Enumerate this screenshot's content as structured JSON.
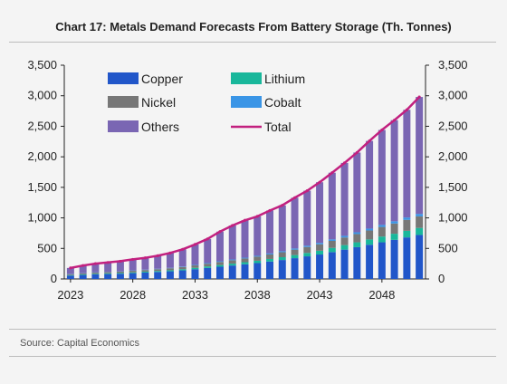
{
  "title": "Chart 17: Metals Demand Forecasts From Battery Storage (Th. Tonnes)",
  "source": "Source: Capital Economics",
  "colors": {
    "copper": "#2156c9",
    "lithium": "#19b79b",
    "nickel": "#777777",
    "cobalt": "#3a95e6",
    "others": "#7a66b3",
    "total": "#c2207f"
  },
  "chart_data": {
    "type": "bar",
    "stacked": true,
    "title": "Chart 17: Metals Demand Forecasts From Battery Storage (Th. Tonnes)",
    "xlabel": "",
    "ylabel": "",
    "ylim": [
      0,
      3500
    ],
    "yticks": [
      "0",
      "500",
      "1,000",
      "1,500",
      "2,000",
      "2,500",
      "3,000",
      "3,500"
    ],
    "xticks": [
      "2023",
      "2028",
      "2033",
      "2038",
      "2043",
      "2048"
    ],
    "legend_position": "top-left",
    "categories": [
      "2023",
      "2024",
      "2025",
      "2026",
      "2027",
      "2028",
      "2029",
      "2030",
      "2031",
      "2032",
      "2033",
      "2034",
      "2035",
      "2036",
      "2037",
      "2038",
      "2039",
      "2040",
      "2041",
      "2042",
      "2043",
      "2044",
      "2045",
      "2046",
      "2047",
      "2048",
      "2049",
      "2050",
      "2051"
    ],
    "series": [
      {
        "name": "Copper",
        "values": [
          55,
          65,
          75,
          80,
          85,
          95,
          105,
          115,
          125,
          140,
          160,
          180,
          200,
          220,
          240,
          260,
          285,
          310,
          340,
          370,
          400,
          440,
          480,
          520,
          560,
          600,
          640,
          680,
          720
        ]
      },
      {
        "name": "Lithium",
        "values": [
          8,
          9,
          10,
          11,
          12,
          13,
          14,
          15,
          17,
          19,
          22,
          25,
          28,
          31,
          34,
          38,
          42,
          46,
          51,
          56,
          62,
          68,
          74,
          80,
          87,
          94,
          100,
          108,
          115
        ]
      },
      {
        "name": "Nickel",
        "values": [
          15,
          17,
          19,
          21,
          23,
          25,
          27,
          30,
          33,
          36,
          40,
          45,
          50,
          55,
          61,
          67,
          74,
          81,
          89,
          97,
          106,
          115,
          125,
          135,
          146,
          157,
          168,
          180,
          190
        ]
      },
      {
        "name": "Cobalt",
        "values": [
          4,
          4,
          5,
          5,
          5,
          6,
          6,
          7,
          7,
          8,
          9,
          10,
          11,
          12,
          13,
          14,
          16,
          17,
          19,
          21,
          23,
          25,
          27,
          29,
          31,
          34,
          36,
          38,
          40
        ]
      },
      {
        "name": "Others",
        "values": [
          98,
          125,
          141,
          153,
          165,
          181,
          193,
          213,
          243,
          282,
          334,
          395,
          486,
          557,
          612,
          646,
          703,
          751,
          831,
          901,
          993,
          1092,
          1194,
          1306,
          1436,
          1555,
          1656,
          1764,
          1915
        ]
      }
    ],
    "line_series": {
      "name": "Total",
      "values": [
        180,
        220,
        250,
        270,
        290,
        320,
        345,
        380,
        425,
        485,
        565,
        655,
        775,
        875,
        960,
        1025,
        1120,
        1205,
        1330,
        1445,
        1584,
        1740,
        1900,
        2070,
        2260,
        2440,
        2600,
        2770,
        2980
      ]
    }
  },
  "legend": {
    "copper": "Copper",
    "lithium": "Lithium",
    "nickel": "Nickel",
    "cobalt": "Cobalt",
    "others": "Others",
    "total": "Total"
  }
}
